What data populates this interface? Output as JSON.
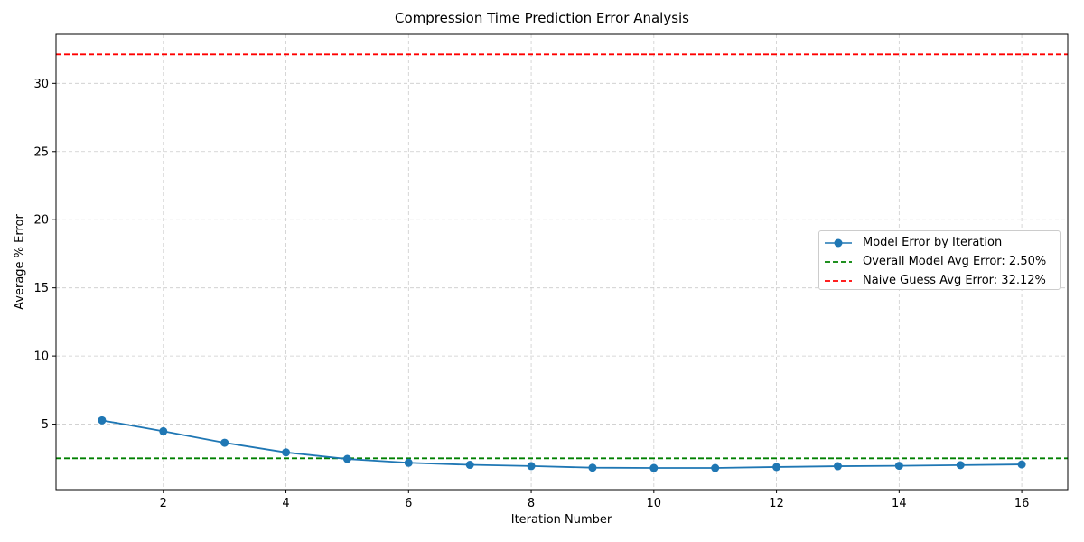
{
  "chart_data": {
    "type": "line",
    "title": "Compression Time Prediction Error Analysis",
    "xlabel": "Iteration Number",
    "ylabel": "Average % Error",
    "x": [
      1,
      2,
      3,
      4,
      5,
      6,
      7,
      8,
      9,
      10,
      11,
      12,
      13,
      14,
      15,
      16
    ],
    "series": [
      {
        "name": "Model Error by Iteration",
        "color": "#1f77b4",
        "marker": "circle",
        "values": [
          5.28,
          4.48,
          3.64,
          2.93,
          2.45,
          2.17,
          2.02,
          1.93,
          1.81,
          1.79,
          1.79,
          1.86,
          1.92,
          1.95,
          2.0,
          2.05
        ]
      }
    ],
    "reference_lines": [
      {
        "name": "Overall Model Avg Error: 2.50%",
        "value": 2.5,
        "color": "#008000",
        "style": "dashed"
      },
      {
        "name": "Naive Guess Avg Error: 32.12%",
        "value": 32.12,
        "color": "#ff0000",
        "style": "dashed"
      }
    ],
    "xticks": [
      2,
      4,
      6,
      8,
      10,
      12,
      14,
      16
    ],
    "yticks": [
      5,
      10,
      15,
      20,
      25,
      30
    ],
    "xlim": [
      0.25,
      16.75
    ],
    "ylim": [
      0.2,
      33.6
    ],
    "grid": true,
    "legend_position": "center-right"
  }
}
